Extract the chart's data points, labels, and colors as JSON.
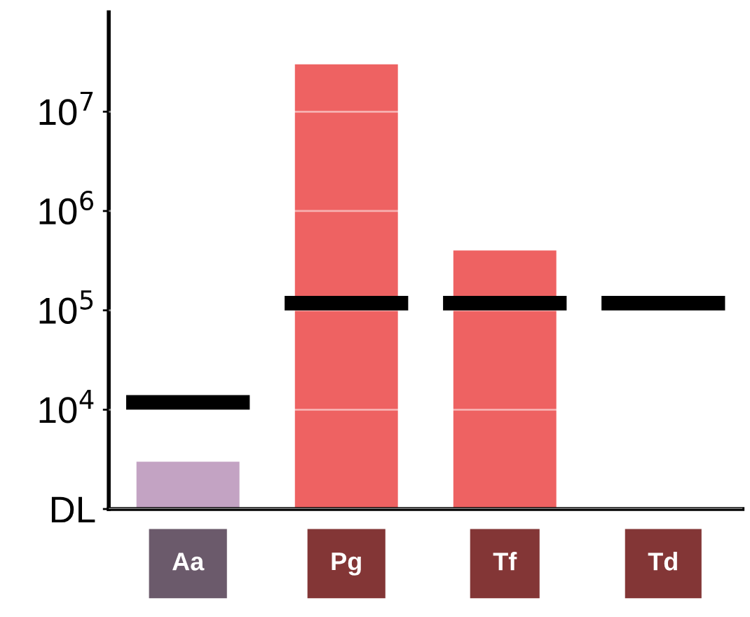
{
  "chart_data": {
    "type": "bar",
    "categories": [
      "Aa",
      "Pg",
      "Tf",
      "Td"
    ],
    "series": [
      {
        "colors": [
          "#c3a3c3",
          "#ee6262",
          "#ee6262",
          "#ee6262"
        ],
        "values": [
          3000,
          30000000,
          400000,
          null
        ]
      },
      {
        "type": "bar",
        "color": "#000000",
        "base": [
          10000,
          100000,
          100000,
          100000
        ],
        "values": [
          4000,
          40000,
          40000,
          40000
        ]
      }
    ],
    "log": true,
    "ylim": [
      1000,
      100000000
    ],
    "yticks": [
      {
        "value": 1000,
        "label": "DL"
      },
      {
        "value": 10000,
        "label": "10$^{4}$"
      },
      {
        "value": 100000,
        "label": "10$^{5}$"
      },
      {
        "value": 1000000,
        "label": "10$^{6}$"
      },
      {
        "value": 10000000,
        "label": "10$^{7}$"
      }
    ],
    "grid": "y"
  }
}
